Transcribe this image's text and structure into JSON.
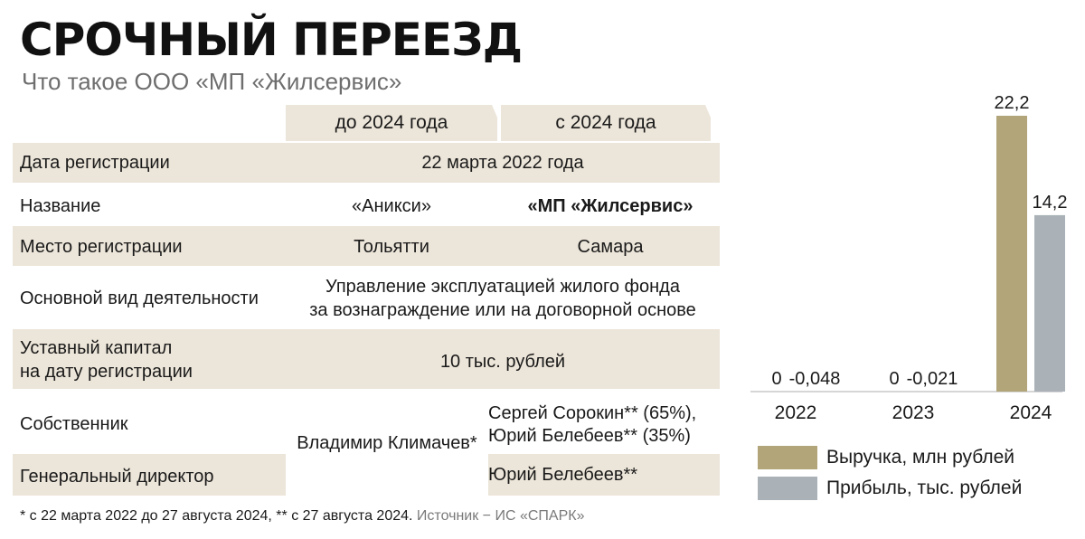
{
  "header": {
    "title": "СРОЧНЫЙ ПЕРЕЕЗД",
    "subtitle": "Что такое ООО «МП «Жилсервис»"
  },
  "table": {
    "columns": [
      "до 2024 года",
      "с 2024 года"
    ],
    "rows": {
      "registration_date": {
        "label": "Дата регистрации",
        "value": "22 марта 2022 года"
      },
      "name": {
        "label": "Название",
        "before": "«Аникси»",
        "after": "«МП «Жилсервис»"
      },
      "place": {
        "label": "Место регистрации",
        "before": "Тольятти",
        "after": "Самара"
      },
      "activity": {
        "label": "Основной вид деятельности",
        "line1": "Управление эксплуатацией жилого фонда",
        "line2": "за вознаграждение или на договорной основе"
      },
      "capital": {
        "label_line1": "Уставный капитал",
        "label_line2": "на дату регистрации",
        "value": "10 тыс. рублей"
      },
      "owner": {
        "label": "Собственник",
        "before": "Владимир Климачев*",
        "after_line1": "Сергей Сорокин** (65%),",
        "after_line2": "Юрий Белебеев** (35%)"
      },
      "director": {
        "label": "Генеральный директор",
        "after": "Юрий Белебеев**"
      }
    }
  },
  "footnote": {
    "text": "* с 22 марта 2022 до 27 августа 2024, ** с 27 августа 2024.",
    "source": "Источник − ИС «СПАРК»"
  },
  "colors": {
    "revenue": "#b2a57a",
    "profit": "#aab2b8",
    "table_shade": "#ece5d9"
  },
  "chart_data": {
    "type": "bar",
    "categories": [
      "2022",
      "2023",
      "2024"
    ],
    "series": [
      {
        "name": "Выручка, млн рублей",
        "values": [
          0,
          0,
          22.2
        ],
        "labels": [
          "0",
          "0",
          "22,2"
        ]
      },
      {
        "name": "Прибыль, тыс. рублей",
        "values": [
          -0.048,
          -0.021,
          14.2
        ],
        "labels": [
          "-0,048",
          "-0,021",
          "14,2"
        ]
      }
    ],
    "ylim": [
      0,
      22.2
    ],
    "legend_position": "bottom",
    "grid": false
  }
}
